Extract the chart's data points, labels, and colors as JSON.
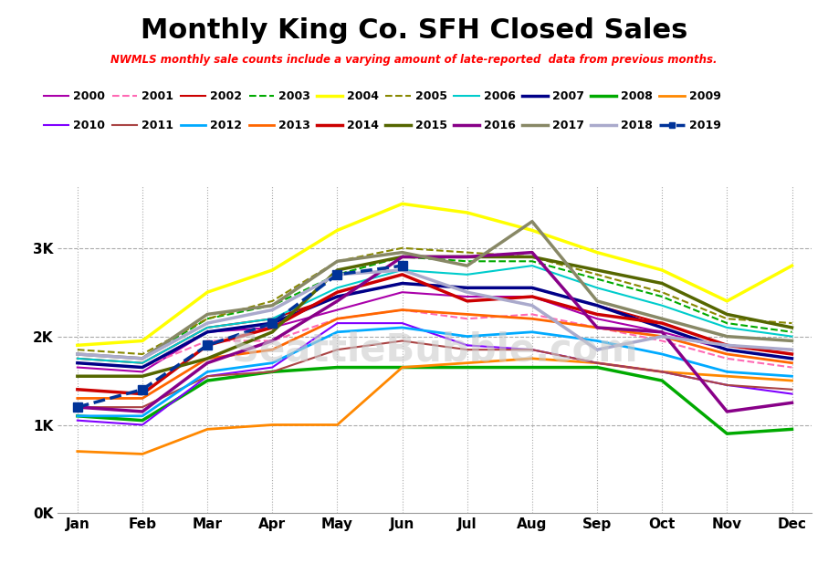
{
  "title": "Monthly King Co. SFH Closed Sales",
  "subtitle": "NWMLS monthly sale counts include a varying amount of late-reported  data from previous months.",
  "months": [
    "Jan",
    "Feb",
    "Mar",
    "Apr",
    "May",
    "Jun",
    "Jul",
    "Aug",
    "Sep",
    "Oct",
    "Nov",
    "Dec"
  ],
  "series": {
    "2000": {
      "color": "#aa00aa",
      "style": "solid",
      "lw": 1.5,
      "data": [
        1650,
        1600,
        2050,
        2100,
        2300,
        2500,
        2450,
        2450,
        2200,
        2050,
        1850,
        1750
      ]
    },
    "2001": {
      "color": "#ff69b4",
      "style": "dashed",
      "lw": 1.5,
      "data": [
        1700,
        1650,
        1950,
        1950,
        2200,
        2300,
        2200,
        2250,
        2100,
        1950,
        1750,
        1650
      ]
    },
    "2002": {
      "color": "#cc0000",
      "style": "solid",
      "lw": 1.5,
      "data": [
        1750,
        1700,
        2100,
        2200,
        2450,
        2600,
        2550,
        2550,
        2350,
        2150,
        1900,
        1800
      ]
    },
    "2003": {
      "color": "#00aa00",
      "style": "dashed",
      "lw": 1.5,
      "data": [
        1800,
        1750,
        2200,
        2350,
        2700,
        2900,
        2850,
        2850,
        2650,
        2450,
        2150,
        2050
      ]
    },
    "2004": {
      "color": "#ffff00",
      "style": "solid",
      "lw": 2.5,
      "data": [
        1900,
        1950,
        2500,
        2750,
        3200,
        3500,
        3400,
        3200,
        2950,
        2750,
        2400,
        2800
      ]
    },
    "2005": {
      "color": "#888800",
      "style": "dashed",
      "lw": 1.5,
      "data": [
        1850,
        1800,
        2200,
        2400,
        2850,
        3000,
        2950,
        2900,
        2700,
        2500,
        2200,
        2150
      ]
    },
    "2006": {
      "color": "#00cccc",
      "style": "solid",
      "lw": 1.5,
      "data": [
        1750,
        1700,
        2100,
        2200,
        2550,
        2750,
        2700,
        2800,
        2550,
        2350,
        2100,
        2000
      ]
    },
    "2007": {
      "color": "#000088",
      "style": "solid",
      "lw": 2.5,
      "data": [
        1700,
        1650,
        2050,
        2150,
        2450,
        2600,
        2550,
        2550,
        2350,
        2100,
        1850,
        1750
      ]
    },
    "2008": {
      "color": "#00aa00",
      "style": "solid",
      "lw": 2.5,
      "data": [
        1100,
        1050,
        1500,
        1600,
        1650,
        1650,
        1650,
        1650,
        1650,
        1500,
        900,
        950
      ]
    },
    "2009": {
      "color": "#ff8800",
      "style": "solid",
      "lw": 2.0,
      "data": [
        700,
        670,
        950,
        1000,
        1000,
        1650,
        1700,
        1750,
        1700,
        1600,
        1550,
        1500
      ]
    },
    "2010": {
      "color": "#7f00ff",
      "style": "solid",
      "lw": 1.5,
      "data": [
        1050,
        1000,
        1550,
        1650,
        2150,
        2150,
        1900,
        1850,
        1700,
        1600,
        1450,
        1350
      ]
    },
    "2011": {
      "color": "#aa4444",
      "style": "solid",
      "lw": 1.5,
      "data": [
        1200,
        1200,
        1550,
        1600,
        1850,
        1950,
        1850,
        1850,
        1700,
        1600,
        1450,
        1400
      ]
    },
    "2012": {
      "color": "#00aaff",
      "style": "solid",
      "lw": 2.0,
      "data": [
        1100,
        1100,
        1600,
        1700,
        2050,
        2100,
        2000,
        2050,
        1950,
        1800,
        1600,
        1550
      ]
    },
    "2013": {
      "color": "#ff6600",
      "style": "solid",
      "lw": 2.0,
      "data": [
        1300,
        1300,
        1750,
        1850,
        2200,
        2300,
        2250,
        2200,
        2100,
        2000,
        1800,
        1700
      ]
    },
    "2014": {
      "color": "#cc0000",
      "style": "solid",
      "lw": 2.5,
      "data": [
        1400,
        1350,
        1900,
        2100,
        2500,
        2700,
        2400,
        2450,
        2250,
        2150,
        1900,
        1800
      ]
    },
    "2015": {
      "color": "#556600",
      "style": "solid",
      "lw": 2.5,
      "data": [
        1550,
        1550,
        1750,
        2050,
        2750,
        2900,
        2900,
        2900,
        2750,
        2600,
        2250,
        2100
      ]
    },
    "2016": {
      "color": "#880088",
      "style": "solid",
      "lw": 2.5,
      "data": [
        1200,
        1150,
        1700,
        1950,
        2400,
        2900,
        2900,
        2950,
        2100,
        2050,
        1150,
        1250
      ]
    },
    "2017": {
      "color": "#888866",
      "style": "solid",
      "lw": 2.5,
      "data": [
        1800,
        1750,
        2250,
        2350,
        2850,
        2950,
        2800,
        3300,
        2400,
        2200,
        2000,
        1950
      ]
    },
    "2018": {
      "color": "#aaaacc",
      "style": "solid",
      "lw": 2.5,
      "data": [
        1800,
        1750,
        2150,
        2300,
        2700,
        2750,
        2500,
        2350,
        1850,
        2000,
        1900,
        1850
      ]
    },
    "2019": {
      "color": "#003399",
      "style": "dashed",
      "lw": 2.5,
      "marker": "s",
      "data": [
        1200,
        1400,
        1900,
        2150,
        2700,
        2800,
        null,
        null,
        null,
        null,
        null,
        null
      ]
    }
  },
  "ylim": [
    0,
    3700
  ],
  "yticks": [
    0,
    1000,
    2000,
    3000
  ],
  "ytick_labels": [
    "0K",
    "1K",
    "2K",
    "3K"
  ],
  "background_color": "#ffffff",
  "grid_h_color": "#aaaaaa",
  "grid_v_color": "#aaaaaa",
  "watermark": "SeattleBubble.com",
  "legend_row1": [
    "2000",
    "2001",
    "2002",
    "2003",
    "2004",
    "2005",
    "2006",
    "2007",
    "2008",
    "2009"
  ],
  "legend_row2": [
    "2010",
    "2011",
    "2012",
    "2013",
    "2014",
    "2015",
    "2016",
    "2017",
    "2018",
    "2019"
  ]
}
